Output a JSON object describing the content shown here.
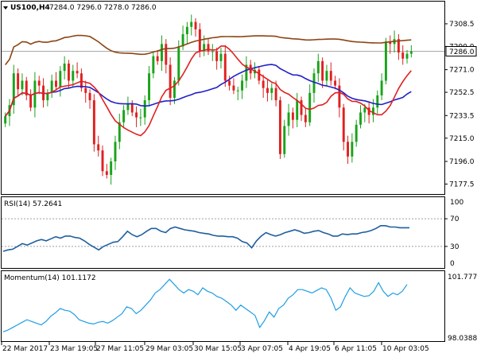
{
  "chart_data": [
    {
      "type": "candlestick",
      "title": "US100,H4",
      "ohlc_label": "7284.0 7296.0 7278.0 7286.0",
      "current_price": 7286.0,
      "current_price_label": "7286.0",
      "ylim": [
        7170,
        7326
      ],
      "y_ticks": [
        7308.5,
        7290.0,
        7271.0,
        7252.5,
        7233.5,
        7215.0,
        7196.0,
        7177.5
      ],
      "y_tick_labels": [
        "7308.5",
        "7290.0",
        "7271.0",
        "7252.5",
        "7233.5",
        "7215.0",
        "7196.0",
        "7177.5"
      ],
      "x_tick_labels": [
        "22 Mar 2017",
        "23 Mar 19:05",
        "27 Mar 11:05",
        "29 Mar 03:05",
        "30 Mar 15:05",
        "3 Apr 07:05",
        "4 Apr 19:05",
        "6 Apr 11:05",
        "10 Apr 03:05"
      ],
      "colors": {
        "up": "#1aa31a",
        "down": "#e02020",
        "ma_fast": "#e02020",
        "ma_mid": "#2020c8",
        "ma_slow": "#8b4513"
      },
      "closes": [
        7233,
        7242,
        7268,
        7255,
        7262,
        7250,
        7240,
        7262,
        7258,
        7246,
        7252,
        7262,
        7257,
        7270,
        7276,
        7262,
        7270,
        7268,
        7256,
        7252,
        7246,
        7210,
        7205,
        7188,
        7185,
        7196,
        7212,
        7228,
        7238,
        7243,
        7236,
        7232,
        7232,
        7246,
        7268,
        7282,
        7278,
        7292,
        7275,
        7248,
        7262,
        7290,
        7300,
        7306,
        7310,
        7304,
        7286,
        7292,
        7286,
        7286,
        7278,
        7284,
        7262,
        7258,
        7254,
        7254,
        7262,
        7275,
        7268,
        7271,
        7262,
        7256,
        7252,
        7256,
        7246,
        7202,
        7225,
        7236,
        7230,
        7246,
        7234,
        7228,
        7252,
        7268,
        7278,
        7262,
        7270,
        7262,
        7258,
        7240,
        7212,
        7200,
        7212,
        7226,
        7236,
        7240,
        7234,
        7240,
        7250,
        7262,
        7294,
        7292,
        7296,
        7285,
        7280,
        7284,
        7286
      ]
    },
    {
      "type": "line",
      "title": "RSI(14) 57.2641",
      "ylim": [
        0,
        100
      ],
      "y_tick_labels": [
        "100",
        "70",
        "30",
        "0"
      ],
      "levels": [
        70,
        30
      ],
      "color": "#1f5f9f",
      "values": [
        23,
        25,
        26,
        30,
        34,
        32,
        35,
        38,
        40,
        38,
        41,
        44,
        42,
        45,
        45,
        43,
        42,
        38,
        33,
        29,
        25,
        30,
        33,
        36,
        37,
        44,
        52,
        47,
        44,
        47,
        52,
        56,
        56,
        52,
        50,
        56,
        58,
        56,
        54,
        53,
        52,
        50,
        49,
        48,
        46,
        45,
        45,
        44,
        44,
        42,
        37,
        35,
        28,
        38,
        45,
        50,
        47,
        45,
        47,
        50,
        52,
        54,
        52,
        49,
        50,
        52,
        53,
        50,
        48,
        45,
        45,
        48,
        47,
        48,
        48,
        50,
        51,
        53,
        56,
        60,
        60,
        58,
        58,
        57,
        57,
        57
      ]
    },
    {
      "type": "line",
      "title": "Momentum(14) 101.1172",
      "ylim": [
        98.0388,
        101.7778
      ],
      "y_tick_labels": [
        "101.7778",
        "98.0388"
      ],
      "color": "#1e9ee3",
      "values": [
        98.35,
        98.45,
        98.6,
        98.75,
        98.9,
        99.05,
        98.95,
        98.85,
        98.75,
        98.95,
        99.25,
        99.45,
        99.7,
        99.6,
        99.55,
        99.35,
        99.05,
        98.95,
        98.85,
        98.8,
        98.9,
        98.95,
        98.85,
        99.0,
        99.2,
        99.4,
        99.8,
        99.7,
        99.4,
        99.6,
        99.9,
        100.2,
        100.6,
        100.8,
        101.1,
        101.4,
        101.1,
        100.8,
        100.6,
        100.8,
        100.7,
        100.5,
        100.9,
        100.7,
        100.6,
        100.4,
        100.3,
        100.1,
        99.9,
        99.6,
        99.9,
        99.7,
        99.5,
        99.3,
        98.6,
        99.0,
        99.5,
        99.2,
        99.7,
        99.9,
        100.3,
        100.5,
        100.8,
        100.8,
        100.7,
        100.6,
        100.75,
        100.9,
        100.8,
        100.3,
        99.6,
        99.8,
        100.4,
        100.9,
        100.6,
        100.5,
        100.4,
        100.45,
        100.7,
        101.2,
        100.7,
        100.4,
        100.6,
        100.5,
        100.7,
        101.1
      ]
    }
  ]
}
